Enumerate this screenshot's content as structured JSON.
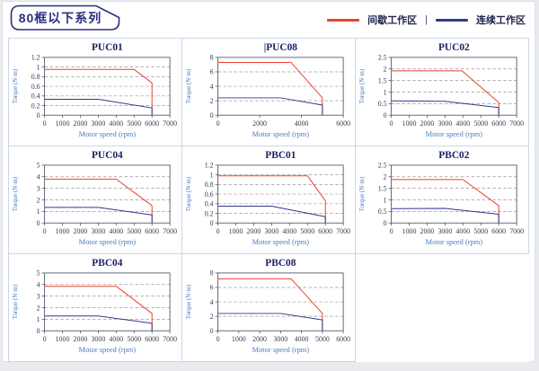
{
  "page": {
    "badge": "80框以下系列"
  },
  "legend": {
    "items": [
      {
        "label": "间歇工作区",
        "color": "#e8432c"
      },
      {
        "label": "连续工作区",
        "color": "#2e3a8c"
      }
    ],
    "separator": "|"
  },
  "colors": {
    "intermittent": "#e8432c",
    "continuous": "#2e3a8c",
    "title": "#1b2165",
    "axis_label": "#4a7cc0",
    "grid": "#999999",
    "frame": "#55596b",
    "tick_text": "#3a3d4a",
    "cell_border": "#ccd6e8",
    "badge": "#2b2f7e"
  },
  "chart_data": [
    {
      "type": "line",
      "title": "PUC01",
      "caret": "",
      "xlabel": "Motor speed (rpm)",
      "ylabel": "Torque (N·m)",
      "xlim": [
        0,
        7000
      ],
      "xticks": [
        0,
        1000,
        2000,
        3000,
        4000,
        5000,
        6000,
        7000
      ],
      "ylim": [
        0,
        1.2
      ],
      "yticks": [
        0,
        0.2,
        0.4,
        0.6,
        0.8,
        1,
        1.2
      ],
      "grid": "dashed-horizontal",
      "legend_position": "none",
      "series": [
        {
          "name": "间歇工作区",
          "color": "#e8432c",
          "points": [
            [
              0,
              0.95
            ],
            [
              5000,
              0.95
            ],
            [
              6000,
              0.67
            ],
            [
              6000,
              0
            ]
          ]
        },
        {
          "name": "连续工作区",
          "color": "#2e3a8c",
          "points": [
            [
              0,
              0.33
            ],
            [
              3000,
              0.33
            ],
            [
              6000,
              0.15
            ],
            [
              6000,
              0
            ]
          ]
        }
      ]
    },
    {
      "type": "line",
      "title": "PUC08",
      "caret": "|",
      "xlabel": "Motor speed (rpm)",
      "ylabel": "Torque (N·m)",
      "xlim": [
        0,
        6000
      ],
      "xticks": [
        0,
        2000,
        4000,
        6000
      ],
      "ylim": [
        0,
        8
      ],
      "yticks": [
        0,
        2,
        4,
        6,
        8
      ],
      "grid": "dashed-horizontal",
      "legend_position": "none",
      "series": [
        {
          "name": "间歇工作区",
          "color": "#e8432c",
          "points": [
            [
              0,
              7.3
            ],
            [
              3500,
              7.3
            ],
            [
              5000,
              2.4
            ],
            [
              5000,
              0
            ]
          ]
        },
        {
          "name": "连续工作区",
          "color": "#2e3a8c",
          "points": [
            [
              0,
              2.4
            ],
            [
              3000,
              2.4
            ],
            [
              5000,
              1.4
            ],
            [
              5000,
              0
            ]
          ]
        }
      ]
    },
    {
      "type": "line",
      "title": "PUC02",
      "caret": "",
      "xlabel": "Motor speed (rpm)",
      "ylabel": "Torque (N·m)",
      "xlim": [
        0,
        7000
      ],
      "xticks": [
        0,
        1000,
        2000,
        3000,
        4000,
        5000,
        6000,
        7000
      ],
      "ylim": [
        0,
        2.5
      ],
      "yticks": [
        0,
        0.5,
        1,
        1.5,
        2,
        2.5
      ],
      "grid": "dashed-horizontal",
      "legend_position": "none",
      "series": [
        {
          "name": "间歇工作区",
          "color": "#e8432c",
          "points": [
            [
              0,
              1.92
            ],
            [
              3950,
              1.92
            ],
            [
              6000,
              0.55
            ],
            [
              6000,
              0
            ]
          ]
        },
        {
          "name": "连续工作区",
          "color": "#2e3a8c",
          "points": [
            [
              0,
              0.62
            ],
            [
              3000,
              0.6
            ],
            [
              6000,
              0.33
            ],
            [
              6000,
              0
            ]
          ]
        }
      ]
    },
    {
      "type": "line",
      "title": "PUC04",
      "caret": "",
      "xlabel": "Motor speed (rpm)",
      "ylabel": "Torque (N·m)",
      "xlim": [
        0,
        7000
      ],
      "xticks": [
        0,
        1000,
        2000,
        3000,
        4000,
        5000,
        6000,
        7000
      ],
      "ylim": [
        0,
        5
      ],
      "yticks": [
        0,
        1,
        2,
        3,
        4,
        5
      ],
      "grid": "dashed-horizontal",
      "legend_position": "none",
      "series": [
        {
          "name": "间歇工作区",
          "color": "#e8432c",
          "points": [
            [
              0,
              3.8
            ],
            [
              4000,
              3.8
            ],
            [
              6000,
              1.5
            ],
            [
              6000,
              0
            ]
          ]
        },
        {
          "name": "连续工作区",
          "color": "#2e3a8c",
          "points": [
            [
              0,
              1.35
            ],
            [
              3000,
              1.35
            ],
            [
              6000,
              0.7
            ],
            [
              6000,
              0
            ]
          ]
        }
      ]
    },
    {
      "type": "line",
      "title": "PBC01",
      "caret": "",
      "xlabel": "Motor speed (rpm)",
      "ylabel": "Torque (N·m)",
      "xlim": [
        0,
        7000
      ],
      "xticks": [
        0,
        1000,
        2000,
        3000,
        4000,
        5000,
        6000,
        7000
      ],
      "ylim": [
        0,
        1.2
      ],
      "yticks": [
        0,
        0.2,
        0.4,
        0.6,
        0.8,
        1,
        1.2
      ],
      "grid": "dashed-horizontal",
      "legend_position": "none",
      "series": [
        {
          "name": "间歇工作区",
          "color": "#e8432c",
          "points": [
            [
              0,
              0.98
            ],
            [
              5000,
              0.98
            ],
            [
              6000,
              0.46
            ],
            [
              6000,
              0
            ]
          ]
        },
        {
          "name": "连续工作区",
          "color": "#2e3a8c",
          "points": [
            [
              0,
              0.35
            ],
            [
              3000,
              0.35
            ],
            [
              6000,
              0.13
            ],
            [
              6000,
              0
            ]
          ]
        }
      ]
    },
    {
      "type": "line",
      "title": "PBC02",
      "caret": "",
      "xlabel": "Motor speed (rpm)",
      "ylabel": "Torque (N·m)",
      "xlim": [
        0,
        7000
      ],
      "xticks": [
        0,
        1000,
        2000,
        3000,
        4000,
        5000,
        6000,
        7000
      ],
      "ylim": [
        0,
        2.5
      ],
      "yticks": [
        0,
        0.5,
        1,
        1.5,
        2,
        2.5
      ],
      "grid": "dashed-horizontal",
      "legend_position": "none",
      "series": [
        {
          "name": "间歇工作区",
          "color": "#e8432c",
          "points": [
            [
              0,
              1.88
            ],
            [
              4000,
              1.88
            ],
            [
              6000,
              0.75
            ],
            [
              6000,
              0
            ]
          ]
        },
        {
          "name": "连续工作区",
          "color": "#2e3a8c",
          "points": [
            [
              0,
              0.62
            ],
            [
              3000,
              0.63
            ],
            [
              6000,
              0.38
            ],
            [
              6000,
              0
            ]
          ]
        }
      ]
    },
    {
      "type": "line",
      "title": "PBC04",
      "caret": "",
      "xlabel": "Motor speed (rpm)",
      "ylabel": "Torque (N·m)",
      "xlim": [
        0,
        7000
      ],
      "xticks": [
        0,
        1000,
        2000,
        3000,
        4000,
        5000,
        6000,
        7000
      ],
      "ylim": [
        0,
        5
      ],
      "yticks": [
        0,
        1,
        2,
        3,
        4,
        5
      ],
      "grid": "dashed-horizontal",
      "legend_position": "none",
      "series": [
        {
          "name": "间歇工作区",
          "color": "#e8432c",
          "points": [
            [
              0,
              3.85
            ],
            [
              4000,
              3.85
            ],
            [
              6000,
              1.5
            ],
            [
              6000,
              0
            ]
          ]
        },
        {
          "name": "连续工作区",
          "color": "#2e3a8c",
          "points": [
            [
              0,
              1.28
            ],
            [
              3000,
              1.28
            ],
            [
              6000,
              0.65
            ],
            [
              6000,
              0
            ]
          ]
        }
      ]
    },
    {
      "type": "line",
      "title": "PBC08",
      "caret": "",
      "xlabel": "Motor speed (rpm)",
      "ylabel": "Torque (N·m)",
      "xlim": [
        0,
        6000
      ],
      "xticks": [
        0,
        1000,
        2000,
        3000,
        4000,
        5000,
        6000
      ],
      "ylim": [
        0,
        8
      ],
      "yticks": [
        0,
        2,
        4,
        6,
        8
      ],
      "grid": "dashed-horizontal",
      "legend_position": "none",
      "series": [
        {
          "name": "间歇工作区",
          "color": "#e8432c",
          "points": [
            [
              0,
              7.2
            ],
            [
              3500,
              7.2
            ],
            [
              5000,
              2.4
            ],
            [
              5000,
              0
            ]
          ]
        },
        {
          "name": "连续工作区",
          "color": "#2e3a8c",
          "points": [
            [
              0,
              2.4
            ],
            [
              3000,
              2.4
            ],
            [
              5000,
              1.5
            ],
            [
              5000,
              0
            ]
          ]
        }
      ]
    }
  ]
}
